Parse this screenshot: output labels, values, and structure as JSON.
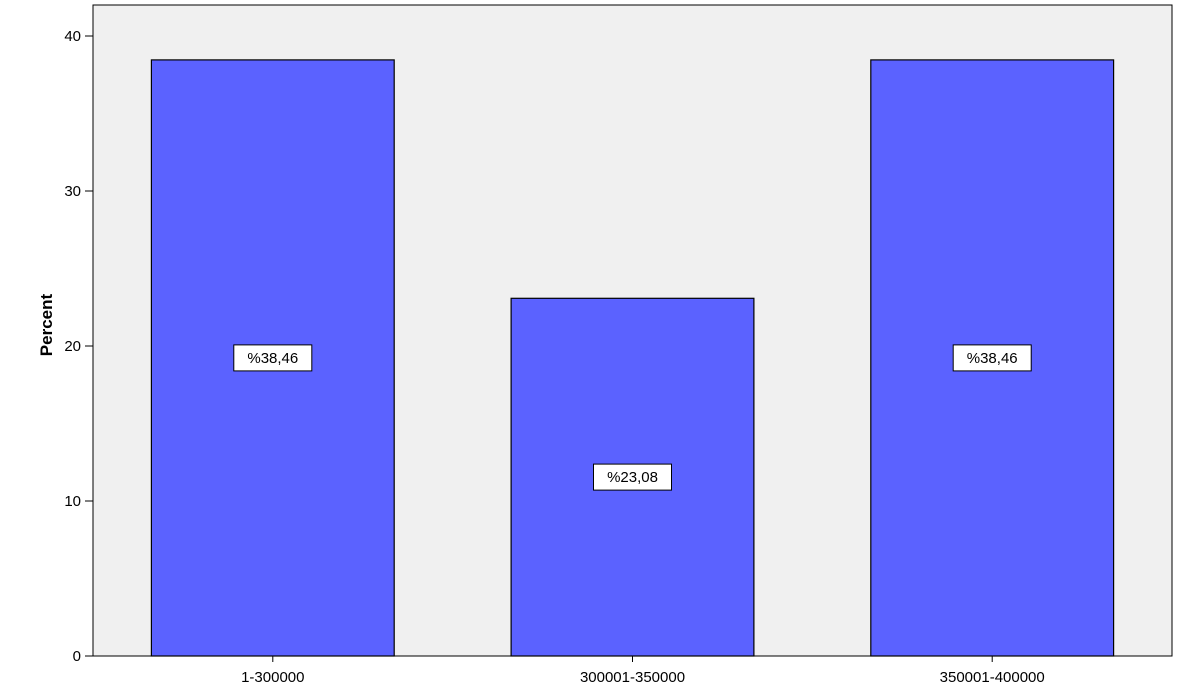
{
  "chart_data": {
    "type": "bar",
    "categories": [
      "1-300000",
      "300001-350000",
      "350001-400000"
    ],
    "values": [
      38.46,
      23.08,
      38.46
    ],
    "data_labels": [
      "%38,46",
      "%23,08",
      "%38,46"
    ],
    "ylabel": "Percent",
    "xlabel": "",
    "ylim": [
      0,
      42
    ],
    "yticks": [
      0,
      10,
      20,
      30,
      40
    ],
    "grid": false,
    "colors": {
      "bar_fill": "#5b62ff",
      "plot_background": "#f0f0f0",
      "axis": "#000000"
    }
  }
}
